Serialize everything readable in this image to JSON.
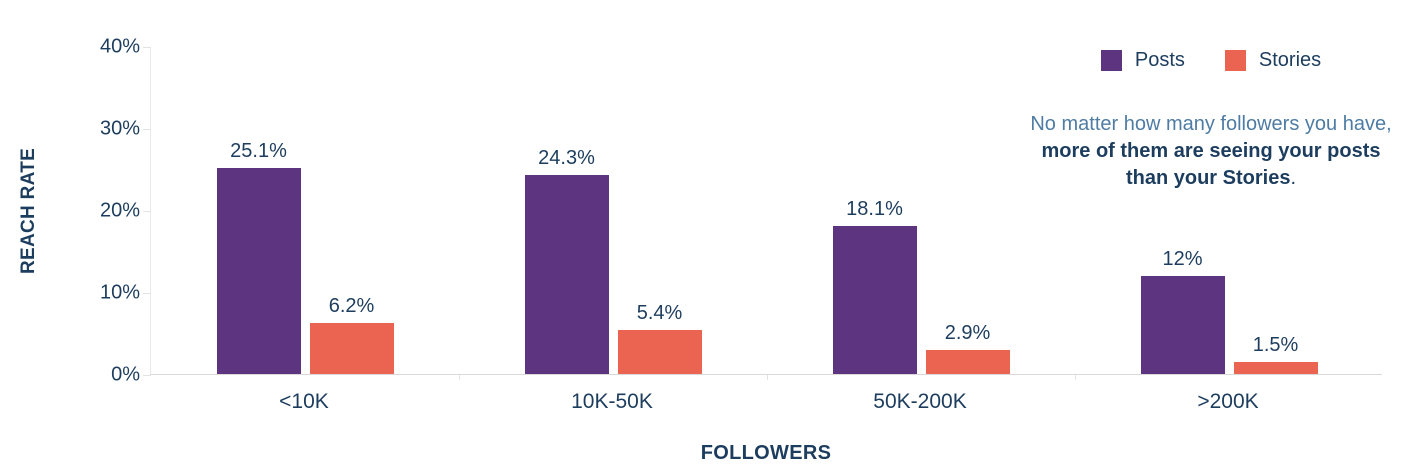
{
  "chart_data": {
    "type": "bar",
    "title": "",
    "xlabel": "FOLLOWERS",
    "ylabel": "REACH RATE",
    "ylim": [
      0,
      40
    ],
    "yticks": [
      {
        "value": 0,
        "label": "0%"
      },
      {
        "value": 10,
        "label": "10%"
      },
      {
        "value": 20,
        "label": "20%"
      },
      {
        "value": 30,
        "label": "30%"
      },
      {
        "value": 40,
        "label": "40%"
      }
    ],
    "categories": [
      "<10K",
      "10K-50K",
      "50K-200K",
      ">200K"
    ],
    "series": [
      {
        "name": "Posts",
        "color": "#5C3480",
        "values": [
          25.1,
          24.3,
          18.1,
          12
        ],
        "labels": [
          "25.1%",
          "24.3%",
          "18.1%",
          "12%"
        ]
      },
      {
        "name": "Stories",
        "color": "#EB6452",
        "values": [
          6.2,
          5.4,
          2.9,
          1.5
        ],
        "labels": [
          "6.2%",
          "5.4%",
          "2.9%",
          "1.5%"
        ]
      }
    ],
    "legend_position": "top-right",
    "grid": false
  },
  "annotation": {
    "line1": "No matter how many followers you have,",
    "line2": "more of them are seeing your posts",
    "line3": "than your Stories",
    "line3_suffix": "."
  },
  "colors": {
    "posts": "#5C3480",
    "stories": "#EB6452",
    "navy_text": "#1D3D5E",
    "steel_blue_text": "#4E7CA4",
    "x_axis_line": "#D9D9D9",
    "y_axis_line": "#EAEAEA"
  }
}
